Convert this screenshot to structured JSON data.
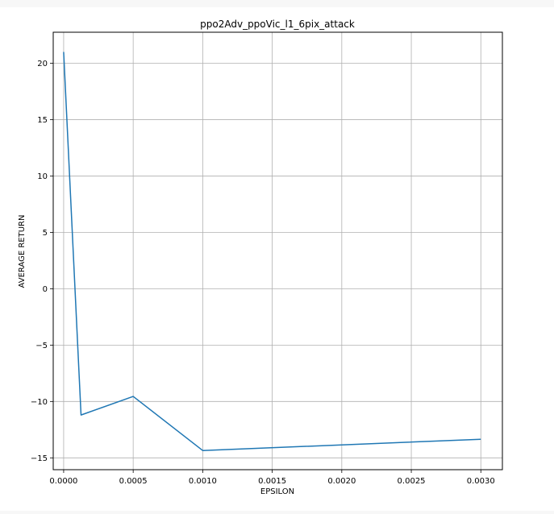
{
  "chart_data": {
    "type": "line",
    "title": "ppo2Adv_ppoVic_l1_6pix_attack",
    "xlabel": "EPSILON",
    "ylabel": "AVERAGE RETURN",
    "xlim": [
      -7.5e-05,
      0.003155
    ],
    "ylim": [
      -16.05,
      22.75
    ],
    "grid": true,
    "x_ticks": [
      0.0,
      0.0005,
      0.001,
      0.0015,
      0.002,
      0.0025,
      0.003
    ],
    "x_tick_labels": [
      "0.0000",
      "0.0005",
      "0.0010",
      "0.0015",
      "0.0020",
      "0.0025",
      "0.0030"
    ],
    "y_ticks": [
      -15,
      -10,
      -5,
      0,
      5,
      10,
      15,
      20
    ],
    "y_tick_labels": [
      "−15",
      "−10",
      "−5",
      "0",
      "5",
      "10",
      "15",
      "20"
    ],
    "series": [
      {
        "color": "#1f77b4",
        "x": [
          0.0,
          0.000125,
          0.0005,
          0.001,
          0.003
        ],
        "y": [
          21.0,
          -11.2,
          -9.55,
          -14.35,
          -13.35
        ]
      }
    ]
  }
}
